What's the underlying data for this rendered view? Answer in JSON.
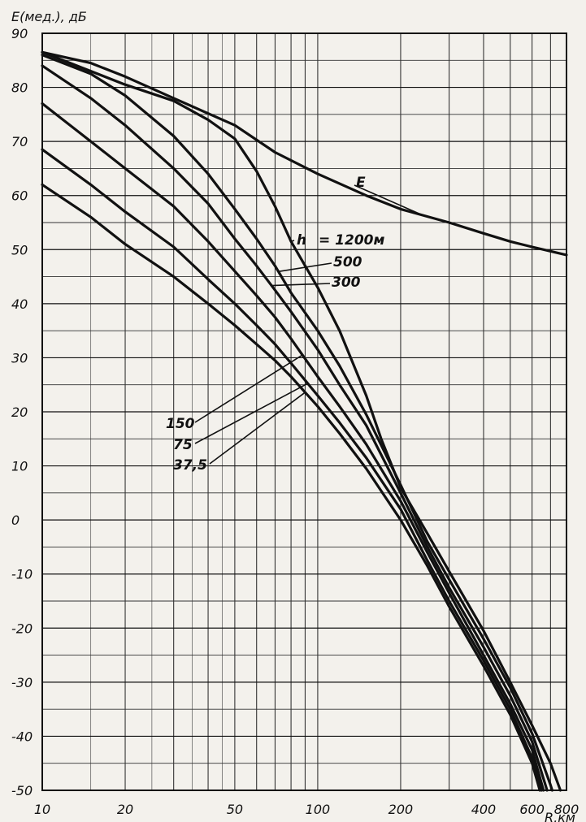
{
  "chart_data": {
    "type": "line",
    "ylabel": "E(мед.), дБ",
    "xlabel": "R,км",
    "x_scale": "log",
    "xlim": [
      10,
      800
    ],
    "ylim": [
      -50,
      90
    ],
    "x_ticks": [
      "10",
      "20",
      "50",
      "100",
      "200",
      "400",
      "600",
      "800"
    ],
    "x_tick_values": [
      10,
      20,
      50,
      100,
      200,
      400,
      600,
      800
    ],
    "y_ticks": [
      "90",
      "80",
      "70",
      "60",
      "50",
      "40",
      "30",
      "20",
      "10",
      "0",
      "-10",
      "-20",
      "-30",
      "-40",
      "-50"
    ],
    "y_tick_values": [
      90,
      80,
      70,
      60,
      50,
      40,
      30,
      20,
      10,
      0,
      -10,
      -20,
      -30,
      -40,
      -50
    ],
    "grid": true,
    "annotations": {
      "E": "E",
      "h_prefix": "h",
      "h1200": "= 1200м",
      "h500": "500",
      "h300": "300",
      "h150": "150",
      "h75": "75",
      "h375": "37,5"
    },
    "series": [
      {
        "name": "E",
        "x": [
          10,
          15,
          20,
          30,
          50,
          70,
          100,
          150,
          200,
          300,
          400,
          500,
          600,
          700,
          800
        ],
        "y": [
          86.5,
          84.5,
          82,
          78,
          73,
          68,
          64,
          60,
          57.5,
          55,
          53,
          51.5,
          50.5,
          49.7,
          49
        ]
      },
      {
        "name": "1200м",
        "x": [
          10,
          20,
          30,
          40,
          50,
          60,
          70,
          80,
          100,
          120,
          150,
          170,
          200,
          250,
          300,
          400,
          500,
          600,
          700,
          760
        ],
        "y": [
          86.5,
          80.5,
          77.5,
          74,
          70.5,
          64.5,
          58,
          51.5,
          43,
          35,
          23,
          15,
          6,
          -2.5,
          -9.5,
          -20.5,
          -30,
          -38,
          -45,
          -50
        ]
      },
      {
        "name": "500",
        "x": [
          10,
          15,
          20,
          30,
          40,
          50,
          60,
          70,
          80,
          100,
          120,
          150,
          200,
          250,
          300,
          400,
          500,
          600,
          700,
          710
        ],
        "y": [
          86,
          82.5,
          78.5,
          71,
          64,
          57.5,
          52,
          47,
          42,
          35,
          28.5,
          19.5,
          6.5,
          -4,
          -11,
          -22,
          -31,
          -39.5,
          -49,
          -50
        ]
      },
      {
        "name": "300",
        "x": [
          10,
          15,
          20,
          30,
          40,
          50,
          60,
          70,
          80,
          100,
          120,
          150,
          200,
          250,
          300,
          400,
          500,
          600,
          680
        ],
        "y": [
          84,
          78,
          73,
          65,
          58.5,
          52,
          47,
          42.5,
          38.5,
          31.5,
          25,
          17.5,
          5,
          -5,
          -12.5,
          -23.5,
          -32.5,
          -41,
          -50
        ]
      },
      {
        "name": "150",
        "x": [
          10,
          15,
          20,
          30,
          40,
          50,
          60,
          70,
          80,
          100,
          120,
          150,
          200,
          250,
          300,
          400,
          500,
          600,
          660
        ],
        "y": [
          77,
          70,
          65,
          58,
          51.5,
          46,
          41.5,
          37.5,
          33.5,
          26.5,
          21,
          14,
          3.5,
          -6,
          -13.5,
          -25,
          -34,
          -42.5,
          -50
        ]
      },
      {
        "name": "75",
        "x": [
          10,
          15,
          20,
          30,
          40,
          50,
          60,
          70,
          80,
          100,
          120,
          150,
          200,
          250,
          300,
          400,
          500,
          600,
          650
        ],
        "y": [
          68.5,
          62,
          57,
          50.5,
          44.5,
          40,
          36,
          32.5,
          29,
          23,
          18,
          11.5,
          2,
          -7.5,
          -15,
          -26,
          -35,
          -44,
          -50
        ]
      },
      {
        "name": "37,5",
        "x": [
          10,
          15,
          20,
          30,
          40,
          50,
          60,
          70,
          80,
          100,
          120,
          150,
          200,
          250,
          300,
          400,
          500,
          600,
          640
        ],
        "y": [
          62,
          56,
          51,
          45,
          40,
          36,
          32.5,
          29.5,
          26.5,
          21,
          16,
          9.5,
          0,
          -8.5,
          -16,
          -27,
          -36,
          -45,
          -50
        ]
      }
    ]
  }
}
